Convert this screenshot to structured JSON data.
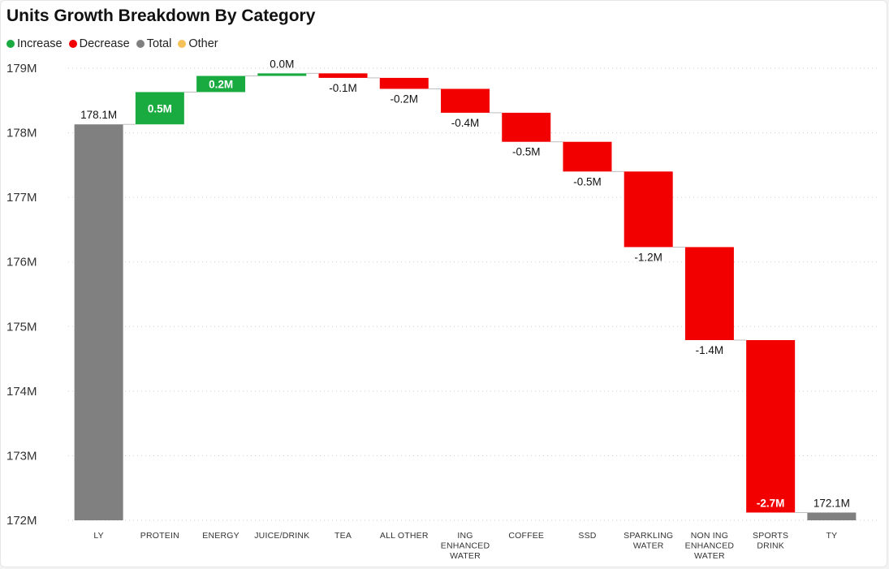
{
  "title": "Units Growth Breakdown By Category",
  "legend": [
    {
      "label": "Increase",
      "color": "#1aab40"
    },
    {
      "label": "Decrease",
      "color": "#f20000"
    },
    {
      "label": "Total",
      "color": "#808080"
    },
    {
      "label": "Other",
      "color": "#f5c158"
    }
  ],
  "chart_data": {
    "type": "bar",
    "subtype": "waterfall",
    "title": "Units Growth Breakdown By Category",
    "xlabel": "",
    "ylabel": "",
    "ylim": [
      172,
      179
    ],
    "yticks": [
      "172M",
      "173M",
      "174M",
      "175M",
      "176M",
      "177M",
      "178M",
      "179M"
    ],
    "grid": true,
    "legend_position": "top-left",
    "categories": [
      "LY",
      "PROTEIN",
      "ENERGY",
      "JUICE/DRINK",
      "TEA",
      "ALL OTHER",
      "ING ENHANCED WATER",
      "COFFEE",
      "SSD",
      "SPARKLING WATER",
      "NON ING ENHANCED WATER",
      "SPORTS DRINK",
      "TY"
    ],
    "bars": [
      {
        "category": "LY",
        "kind": "total",
        "start": 0,
        "end": 178.13,
        "label": "178.1M"
      },
      {
        "category": "PROTEIN",
        "kind": "increase",
        "start": 178.13,
        "end": 178.63,
        "label": "0.5M"
      },
      {
        "category": "ENERGY",
        "kind": "increase",
        "start": 178.63,
        "end": 178.88,
        "label": "0.2M"
      },
      {
        "category": "JUICE/DRINK",
        "kind": "increase",
        "start": 178.88,
        "end": 178.92,
        "label": "0.0M"
      },
      {
        "category": "TEA",
        "kind": "decrease",
        "start": 178.92,
        "end": 178.85,
        "label": "-0.1M"
      },
      {
        "category": "ALL OTHER",
        "kind": "decrease",
        "start": 178.85,
        "end": 178.68,
        "label": "-0.2M"
      },
      {
        "category": "ING ENHANCED WATER",
        "kind": "decrease",
        "start": 178.68,
        "end": 178.31,
        "label": "-0.4M"
      },
      {
        "category": "COFFEE",
        "kind": "decrease",
        "start": 178.31,
        "end": 177.86,
        "label": "-0.5M"
      },
      {
        "category": "SSD",
        "kind": "decrease",
        "start": 177.86,
        "end": 177.4,
        "label": "-0.5M"
      },
      {
        "category": "SPARKLING WATER",
        "kind": "decrease",
        "start": 177.4,
        "end": 176.23,
        "label": "-1.2M"
      },
      {
        "category": "NON ING ENHANCED WATER",
        "kind": "decrease",
        "start": 176.23,
        "end": 174.79,
        "label": "-1.4M"
      },
      {
        "category": "SPORTS DRINK",
        "kind": "decrease",
        "start": 174.79,
        "end": 172.12,
        "label": "-2.7M"
      },
      {
        "category": "TY",
        "kind": "total",
        "start": 0,
        "end": 172.12,
        "label": "172.1M"
      }
    ]
  }
}
